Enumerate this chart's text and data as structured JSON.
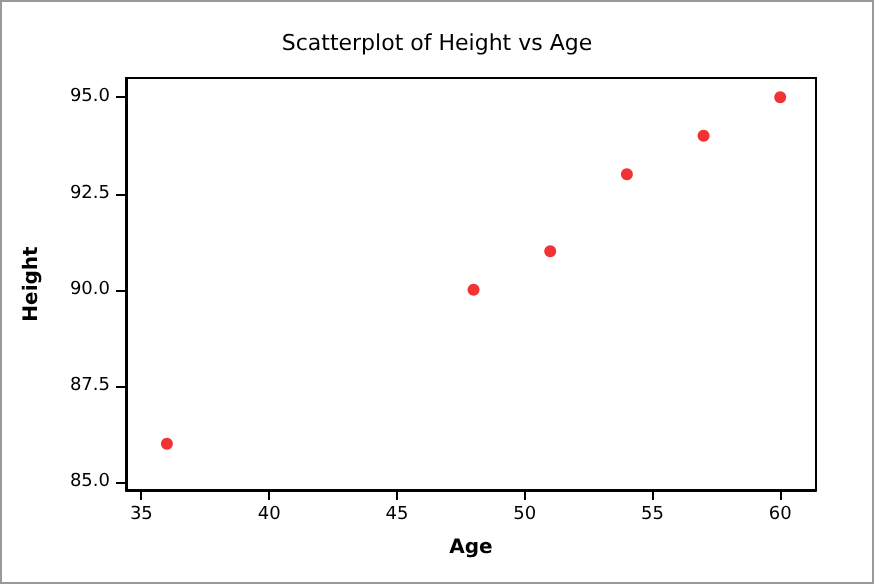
{
  "chart_data": {
    "type": "scatter",
    "title": "Scatterplot of Height vs Age",
    "xlabel": "Age",
    "ylabel": "Height",
    "x": [
      36,
      48,
      51,
      54,
      57,
      60
    ],
    "values": [
      86,
      90,
      91,
      93,
      94,
      95
    ],
    "color": "#ee0000",
    "marker": "circle",
    "grid": false,
    "xlim": [
      34.4,
      61.4
    ],
    "xticks": [
      35,
      40,
      45,
      50,
      55,
      60
    ],
    "ylim": [
      84.8,
      95.5
    ],
    "yticks": [
      {
        "value": 85,
        "label": "85.0"
      },
      {
        "value": 87.5,
        "label": "87.5"
      },
      {
        "value": 90,
        "label": "90.0"
      },
      {
        "value": 92.5,
        "label": "92.5"
      },
      {
        "value": 95,
        "label": "95.0"
      }
    ]
  }
}
